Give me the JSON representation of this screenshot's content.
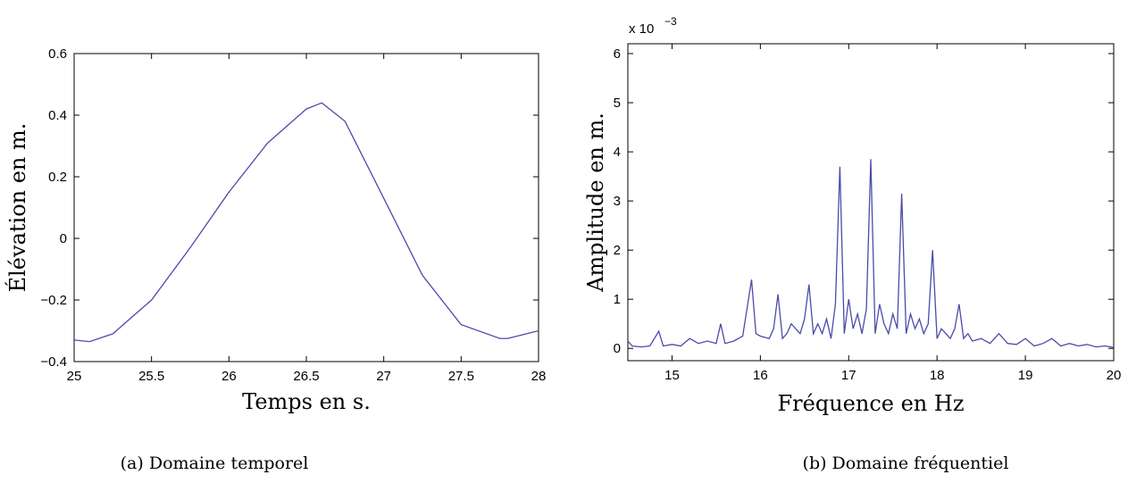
{
  "chart_data": [
    {
      "type": "line",
      "xlabel": "Temps en s.",
      "ylabel": "Élévation en m.",
      "caption": "(a) Domaine temporel",
      "xlim": [
        25,
        28
      ],
      "ylim": [
        -0.4,
        0.6
      ],
      "xticks": [
        25,
        25.5,
        26,
        26.5,
        27,
        27.5,
        28
      ],
      "xtick_labels": [
        "25",
        "25.5",
        "26",
        "26.5",
        "27",
        "27.5",
        "28"
      ],
      "yticks": [
        -0.4,
        -0.2,
        0,
        0.2,
        0.4,
        0.6
      ],
      "ytick_labels": [
        "−0.4",
        "−0.2",
        "0",
        "0.2",
        "0.4",
        "0.6"
      ],
      "series_color": "#4b4baa",
      "series": [
        {
          "x": [
            25,
            25.1,
            25.25,
            25.5,
            25.75,
            26,
            26.25,
            26.5,
            26.6,
            26.75,
            27,
            27.25,
            27.5,
            27.75,
            27.8,
            28
          ],
          "y": [
            -0.33,
            -0.335,
            -0.31,
            -0.2,
            -0.03,
            0.15,
            0.31,
            0.42,
            0.44,
            0.38,
            0.13,
            -0.12,
            -0.28,
            -0.325,
            -0.325,
            -0.3
          ]
        }
      ]
    },
    {
      "type": "line",
      "xlabel": "Fréquence en Hz",
      "ylabel": "Amplitude en m.",
      "caption": "(b) Domaine fréquentiel",
      "exponent_label": "x 10",
      "exponent_power": "−3",
      "xlim": [
        14.5,
        20
      ],
      "ylim": [
        -0.25,
        6.2
      ],
      "xticks": [
        15,
        16,
        17,
        18,
        19,
        20
      ],
      "xtick_labels": [
        "15",
        "16",
        "17",
        "18",
        "19",
        "20"
      ],
      "yticks": [
        0,
        1,
        2,
        3,
        4,
        5,
        6
      ],
      "ytick_labels": [
        "0",
        "1",
        "2",
        "3",
        "4",
        "5",
        "6"
      ],
      "series_color": "#4b4baa",
      "series": [
        {
          "x": [
            14.5,
            14.55,
            14.65,
            14.75,
            14.85,
            14.9,
            15.0,
            15.1,
            15.2,
            15.3,
            15.4,
            15.5,
            15.55,
            15.6,
            15.7,
            15.8,
            15.9,
            15.95,
            16.0,
            16.1,
            16.15,
            16.2,
            16.25,
            16.3,
            16.35,
            16.4,
            16.45,
            16.5,
            16.55,
            16.6,
            16.65,
            16.7,
            16.75,
            16.8,
            16.85,
            16.9,
            16.95,
            17.0,
            17.05,
            17.1,
            17.15,
            17.2,
            17.25,
            17.3,
            17.35,
            17.4,
            17.45,
            17.5,
            17.55,
            17.6,
            17.65,
            17.7,
            17.75,
            17.8,
            17.85,
            17.9,
            17.95,
            18.0,
            18.05,
            18.1,
            18.15,
            18.2,
            18.25,
            18.3,
            18.35,
            18.4,
            18.5,
            18.6,
            18.7,
            18.8,
            18.9,
            19.0,
            19.1,
            19.2,
            19.3,
            19.4,
            19.5,
            19.6,
            19.7,
            19.8,
            19.9,
            20.0
          ],
          "y": [
            0.15,
            0.05,
            0.03,
            0.05,
            0.35,
            0.05,
            0.08,
            0.05,
            0.2,
            0.1,
            0.15,
            0.1,
            0.5,
            0.1,
            0.15,
            0.25,
            1.4,
            0.3,
            0.25,
            0.2,
            0.4,
            1.1,
            0.2,
            0.3,
            0.5,
            0.4,
            0.3,
            0.6,
            1.3,
            0.3,
            0.5,
            0.3,
            0.6,
            0.2,
            0.9,
            3.7,
            0.3,
            1.0,
            0.4,
            0.7,
            0.3,
            0.8,
            3.85,
            0.3,
            0.9,
            0.5,
            0.3,
            0.7,
            0.4,
            3.15,
            0.3,
            0.7,
            0.4,
            0.6,
            0.3,
            0.5,
            2.0,
            0.2,
            0.4,
            0.3,
            0.2,
            0.4,
            0.9,
            0.2,
            0.3,
            0.15,
            0.2,
            0.1,
            0.3,
            0.1,
            0.08,
            0.2,
            0.05,
            0.1,
            0.2,
            0.05,
            0.1,
            0.05,
            0.08,
            0.03,
            0.05,
            0.02
          ]
        }
      ]
    }
  ]
}
